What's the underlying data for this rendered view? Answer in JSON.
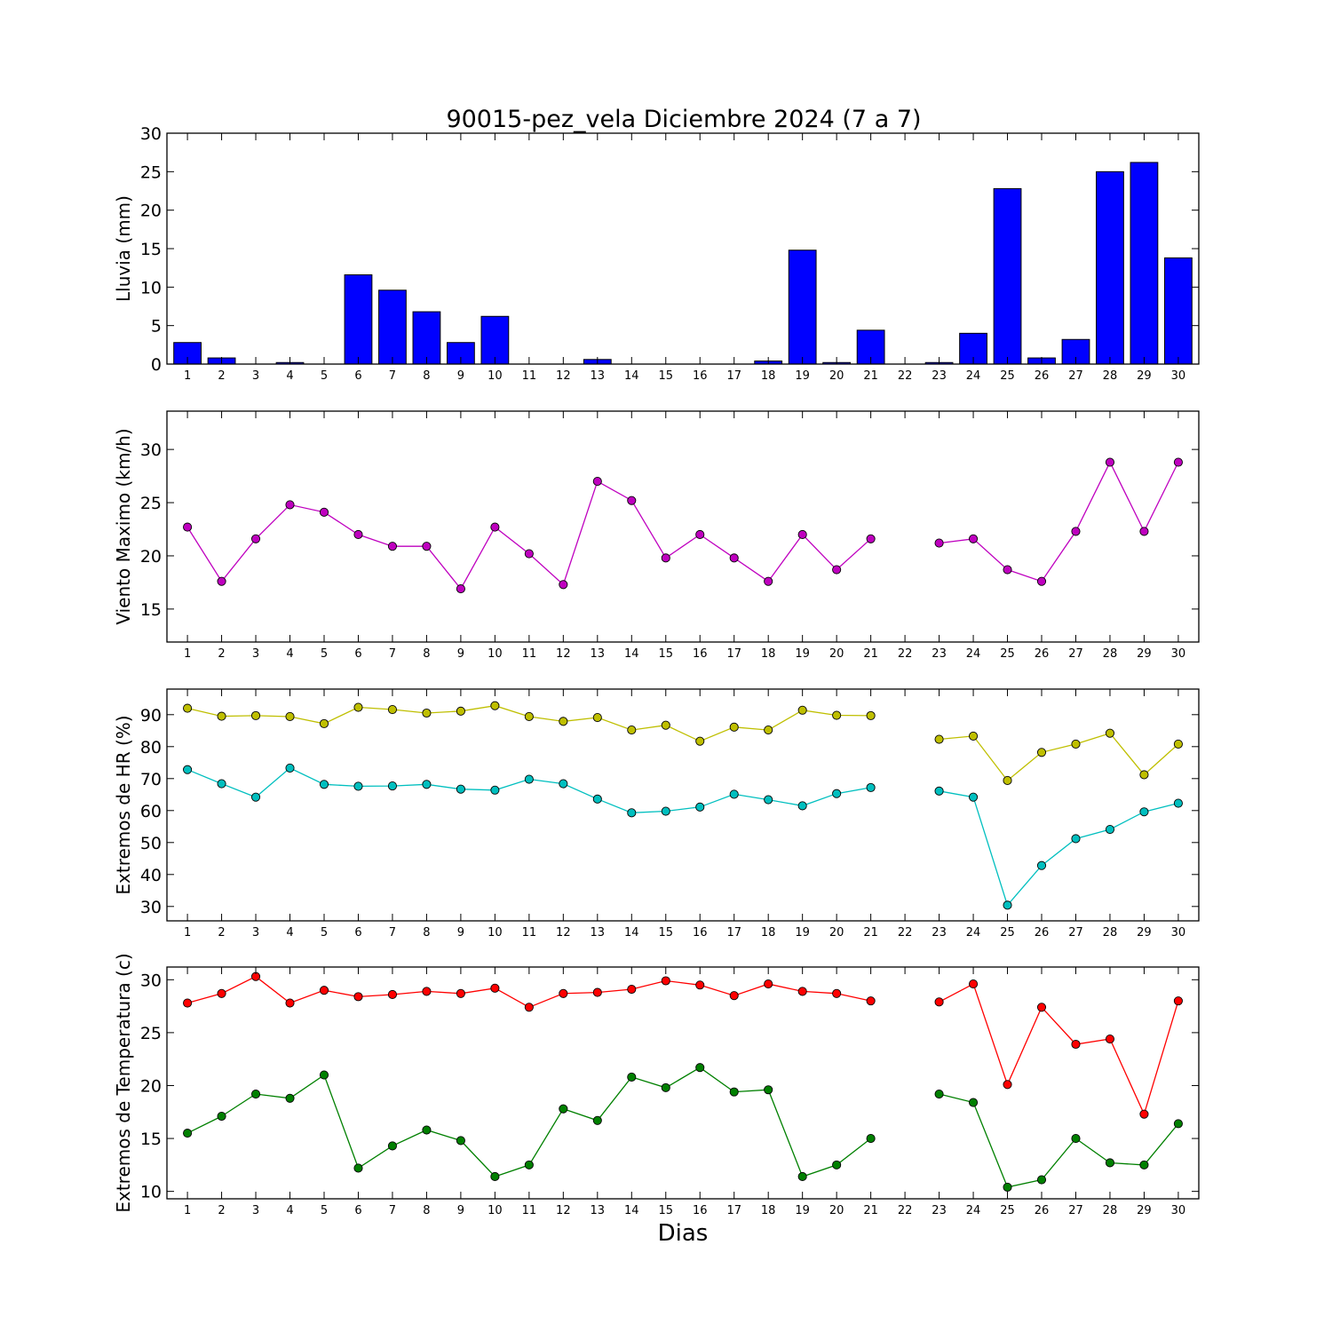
{
  "title": "90015-pez_vela Diciembre 2024  (7 a 7)",
  "xlabel": "Dias",
  "days": [
    1,
    2,
    3,
    4,
    5,
    6,
    7,
    8,
    9,
    10,
    11,
    12,
    13,
    14,
    15,
    16,
    17,
    18,
    19,
    20,
    21,
    22,
    23,
    24,
    25,
    26,
    27,
    28,
    29,
    30
  ],
  "chart_data": [
    {
      "type": "bar",
      "ylabel": "Lluvia (mm)",
      "ylim": [
        0,
        30
      ],
      "yticks": [
        0,
        5,
        10,
        15,
        20,
        25,
        30
      ],
      "categories": [
        1,
        2,
        3,
        4,
        5,
        6,
        7,
        8,
        9,
        10,
        11,
        12,
        13,
        14,
        15,
        16,
        17,
        18,
        19,
        20,
        21,
        22,
        23,
        24,
        25,
        26,
        27,
        28,
        29,
        30
      ],
      "color": "#0000ff",
      "values": [
        2.8,
        0.8,
        0,
        0.2,
        0,
        11.6,
        9.6,
        6.8,
        2.8,
        6.2,
        0,
        0,
        0.6,
        0,
        0,
        0,
        0,
        0.4,
        14.8,
        0.2,
        4.4,
        0,
        0.2,
        4.0,
        22.8,
        0.8,
        3.2,
        25.0,
        26.2,
        13.8
      ]
    },
    {
      "type": "line",
      "ylabel": "Viento Maximo (km/h)",
      "ylim": [
        11.9,
        33.6
      ],
      "yticks": [
        15,
        20,
        25,
        30
      ],
      "x": [
        1,
        2,
        3,
        4,
        5,
        6,
        7,
        8,
        9,
        10,
        11,
        12,
        13,
        14,
        15,
        16,
        17,
        18,
        19,
        20,
        21,
        22,
        23,
        24,
        25,
        26,
        27,
        28,
        29,
        30
      ],
      "series": [
        {
          "color": "#bf00bf",
          "values": [
            22.7,
            17.6,
            21.6,
            24.8,
            24.1,
            22.0,
            20.9,
            20.9,
            16.9,
            22.7,
            20.2,
            17.3,
            27.0,
            25.2,
            19.8,
            22.0,
            19.8,
            17.6,
            22.0,
            18.7,
            21.6,
            null,
            21.2,
            21.6,
            18.7,
            17.6,
            22.3,
            28.8,
            22.3,
            28.8
          ]
        }
      ]
    },
    {
      "type": "line",
      "ylabel": "Extremos de HR (%)",
      "ylim": [
        25.5,
        98
      ],
      "yticks": [
        30,
        40,
        50,
        60,
        70,
        80,
        90
      ],
      "x": [
        1,
        2,
        3,
        4,
        5,
        6,
        7,
        8,
        9,
        10,
        11,
        12,
        13,
        14,
        15,
        16,
        17,
        18,
        19,
        20,
        21,
        22,
        23,
        24,
        25,
        26,
        27,
        28,
        29,
        30
      ],
      "series": [
        {
          "color": "#bfbf00",
          "values": [
            92,
            89.5,
            89.7,
            89.4,
            87.2,
            92.3,
            91.6,
            90.5,
            91.1,
            92.8,
            89.4,
            87.9,
            89.1,
            85.2,
            86.7,
            81.7,
            86.1,
            85.2,
            91.4,
            89.8,
            89.7,
            null,
            82.3,
            83.3,
            69.4,
            78.2,
            80.8,
            84.2,
            71.2,
            80.8
          ]
        },
        {
          "color": "#00bfbf",
          "values": [
            72.8,
            68.4,
            64.2,
            73.3,
            68.2,
            67.6,
            67.7,
            68.2,
            66.7,
            66.4,
            69.8,
            68.4,
            63.6,
            59.3,
            59.8,
            61.1,
            65.1,
            63.4,
            61.5,
            65.3,
            67.2,
            null,
            66.1,
            64.2,
            30.4,
            42.8,
            51.2,
            54.1,
            59.6,
            62.3
          ]
        }
      ]
    },
    {
      "type": "line",
      "ylabel": "Extremos de Temperatura (c)",
      "ylim": [
        9.3,
        31.2
      ],
      "yticks": [
        10,
        15,
        20,
        25,
        30
      ],
      "x": [
        1,
        2,
        3,
        4,
        5,
        6,
        7,
        8,
        9,
        10,
        11,
        12,
        13,
        14,
        15,
        16,
        17,
        18,
        19,
        20,
        21,
        22,
        23,
        24,
        25,
        26,
        27,
        28,
        29,
        30
      ],
      "series": [
        {
          "color": "#ff0000",
          "values": [
            27.8,
            28.7,
            30.3,
            27.8,
            29.0,
            28.4,
            28.6,
            28.9,
            28.7,
            29.2,
            27.4,
            28.7,
            28.8,
            29.1,
            29.9,
            29.5,
            28.5,
            29.6,
            28.9,
            28.7,
            28.0,
            null,
            27.9,
            29.6,
            20.1,
            27.4,
            23.9,
            24.4,
            17.3,
            28.0
          ]
        },
        {
          "color": "#008000",
          "values": [
            15.5,
            17.1,
            19.2,
            18.8,
            21.0,
            12.2,
            14.3,
            15.8,
            14.8,
            11.4,
            12.5,
            17.8,
            16.7,
            20.8,
            19.8,
            21.7,
            19.4,
            19.6,
            11.4,
            12.5,
            15.0,
            null,
            19.2,
            18.4,
            10.4,
            11.1,
            15.0,
            12.7,
            12.5,
            16.4
          ]
        }
      ]
    }
  ]
}
